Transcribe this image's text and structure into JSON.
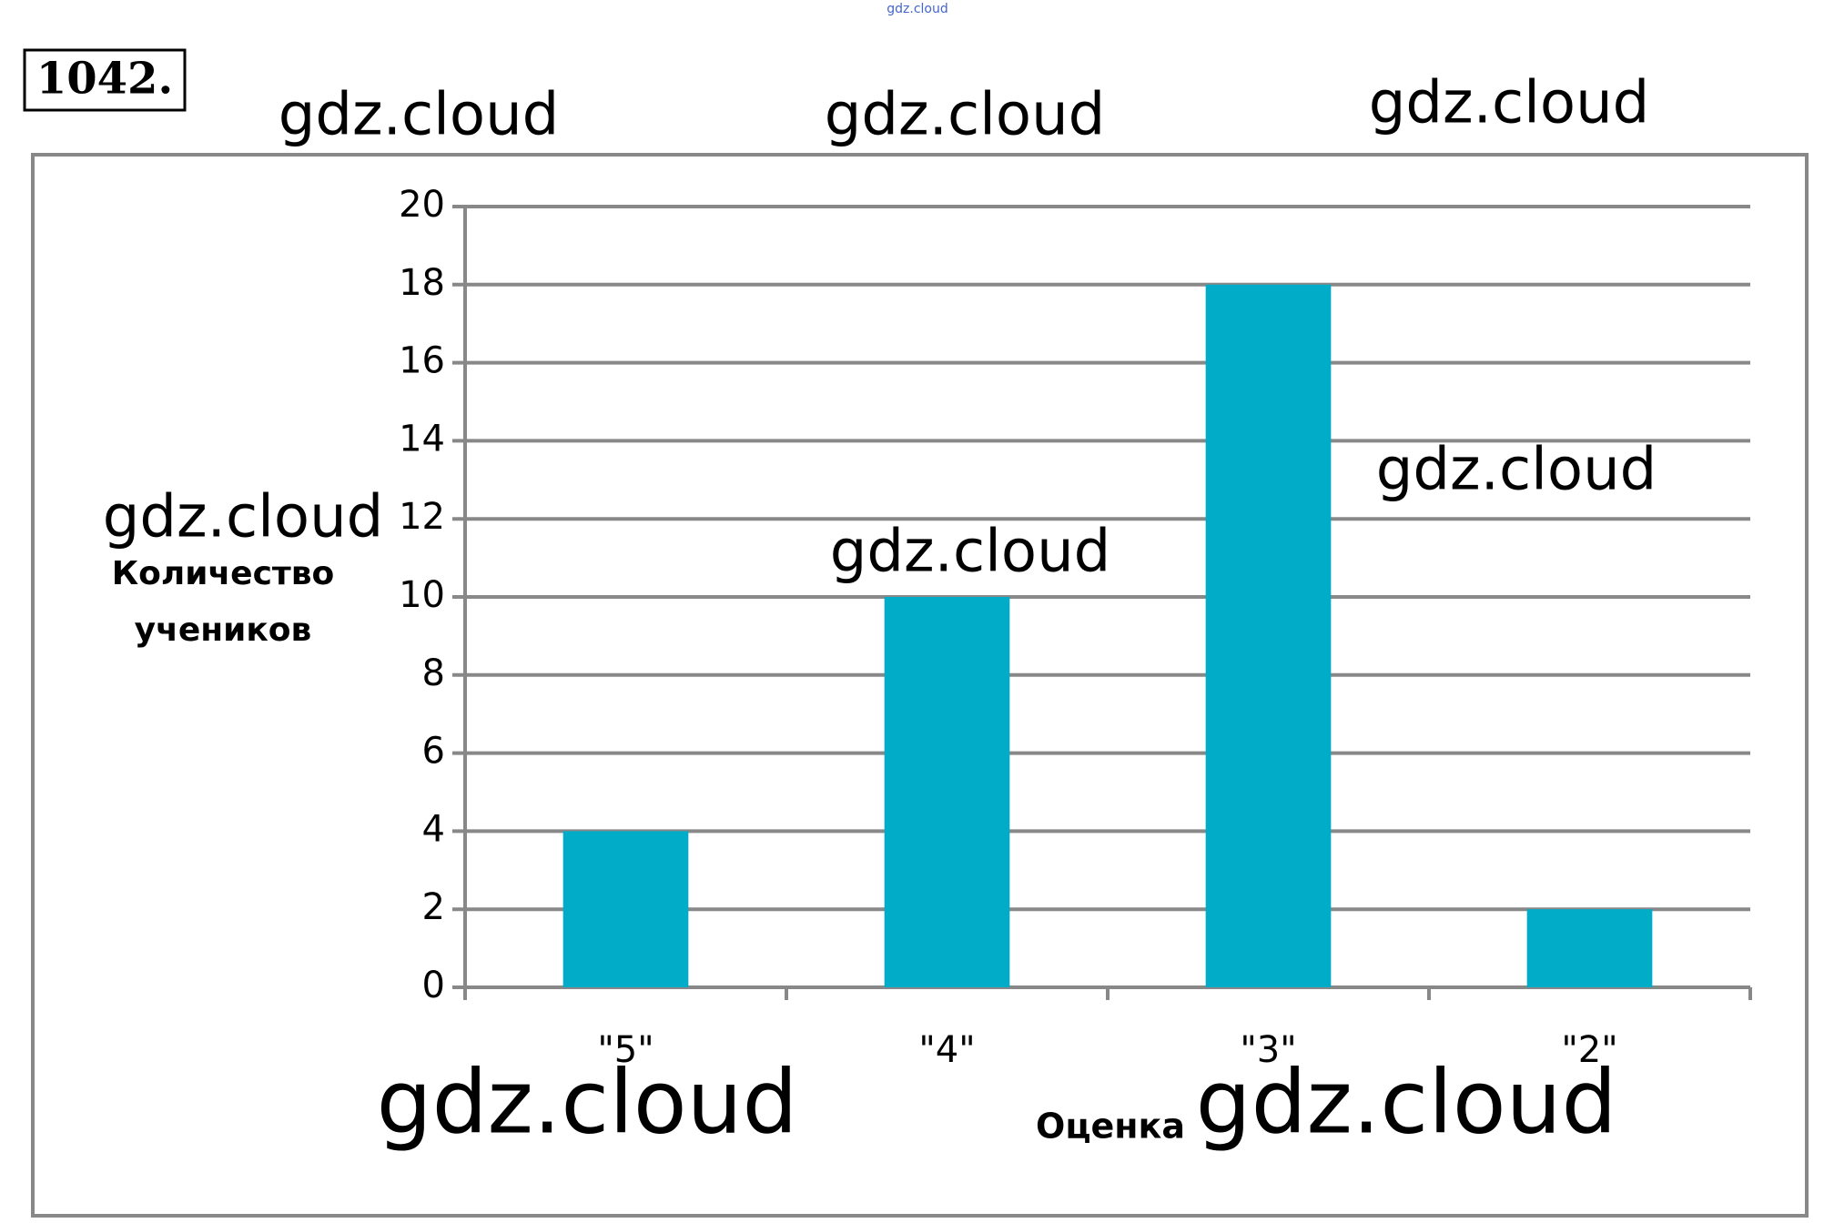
{
  "problem_number": "1042.",
  "chart_data": {
    "type": "bar",
    "x_label": "Оценка",
    "y_label": "Количество учеников",
    "categories": [
      "\"5\"",
      "\"4\"",
      "\"3\"",
      "\"2\""
    ],
    "values": [
      4,
      10,
      18,
      2
    ],
    "color": "#00acc8",
    "ylim": [
      0,
      20
    ],
    "yticks": [
      0,
      2,
      4,
      6,
      8,
      10,
      12,
      14,
      16,
      18,
      20
    ],
    "grid": true
  },
  "watermarks": [
    "gdz.cloud",
    "gdz.cloud",
    "gdz.cloud",
    "gdz.cloud",
    "gdz.cloud",
    "gdz.cloud",
    "gdz.cloud",
    "gdz.cloud",
    "gdz.cloud"
  ]
}
